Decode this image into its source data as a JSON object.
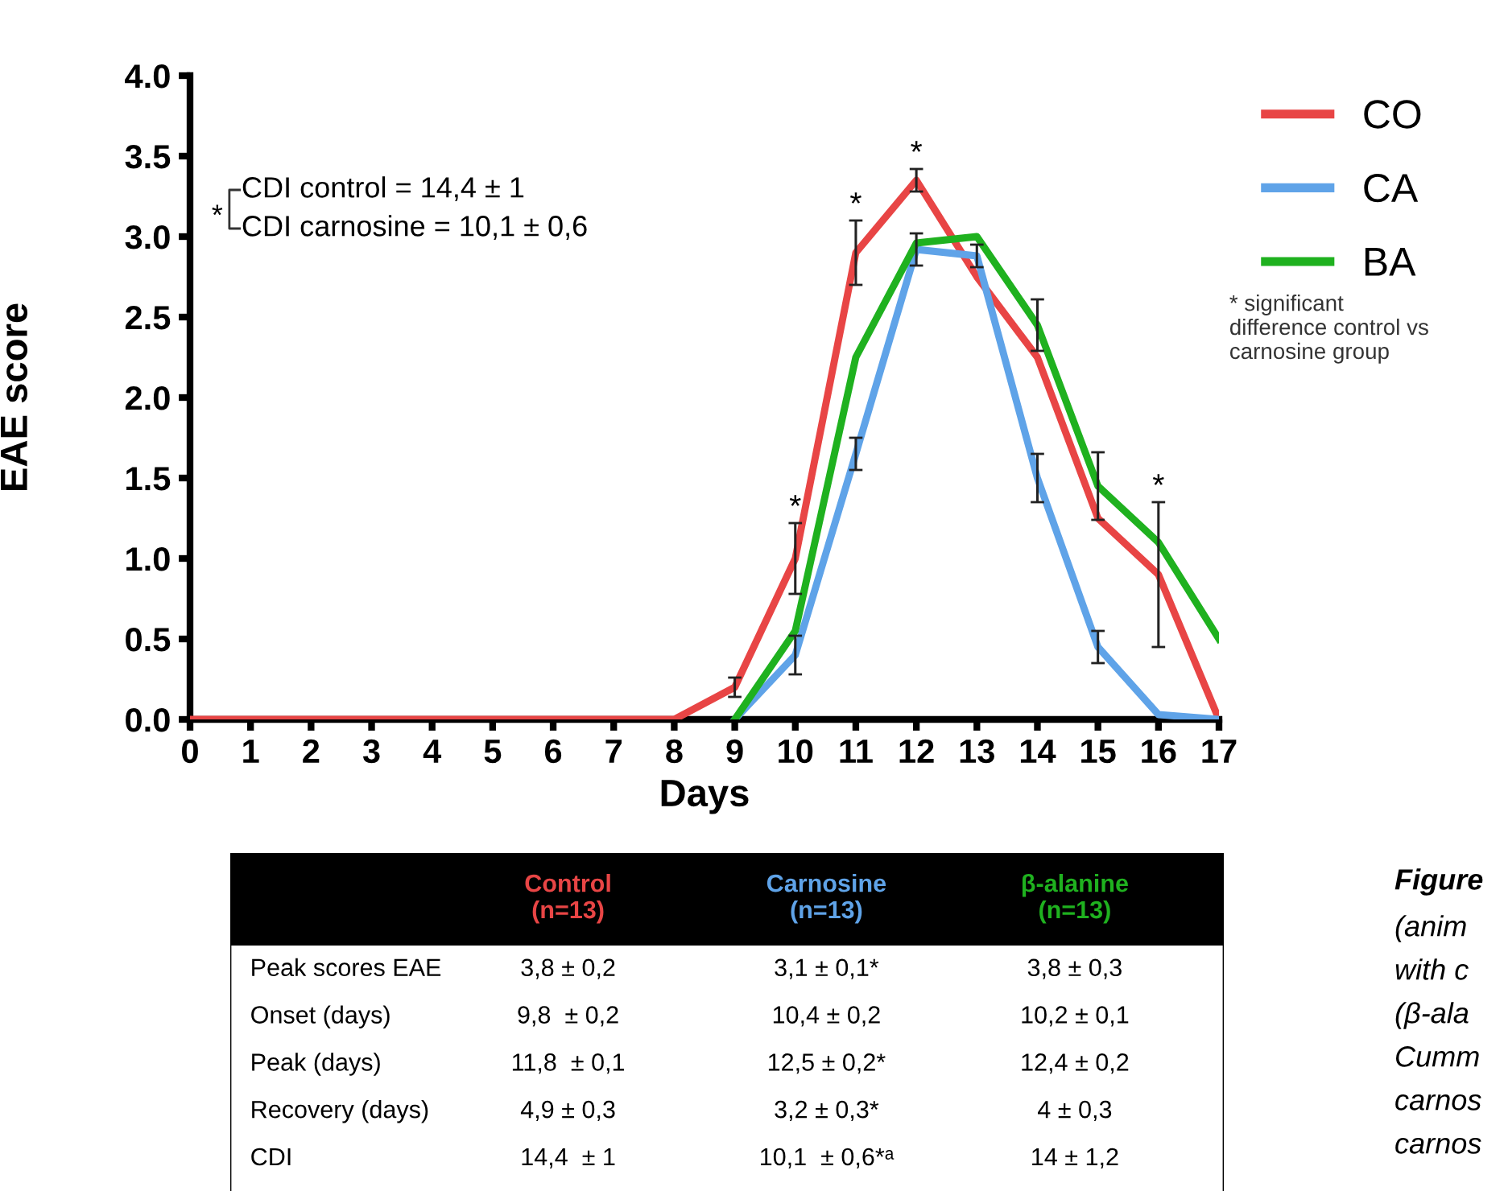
{
  "chart_data": [
    {
      "type": "line",
      "xlabel": "Days",
      "ylabel": "EAE score",
      "x": [
        0,
        1,
        2,
        3,
        4,
        5,
        6,
        7,
        8,
        9,
        10,
        11,
        12,
        13,
        14,
        15,
        16,
        17
      ],
      "series": [
        {
          "name": "CO",
          "color": "#e84545",
          "values": [
            0,
            0,
            0,
            0,
            0,
            0,
            0,
            0,
            0,
            0.2,
            1.0,
            2.9,
            3.35,
            2.75,
            2.25,
            1.25,
            0.9,
            0
          ],
          "errors": [
            null,
            null,
            null,
            null,
            null,
            null,
            null,
            null,
            null,
            0.06,
            0.22,
            0.2,
            0.07,
            null,
            null,
            null,
            0.45,
            null
          ]
        },
        {
          "name": "CA",
          "color": "#5fa3e8",
          "values": [
            null,
            null,
            null,
            null,
            null,
            null,
            null,
            null,
            null,
            0,
            0.4,
            1.65,
            2.92,
            2.88,
            1.5,
            0.45,
            0.03,
            0
          ],
          "errors": [
            null,
            null,
            null,
            null,
            null,
            null,
            null,
            null,
            null,
            null,
            0.12,
            0.1,
            0.1,
            0.07,
            0.15,
            0.1,
            null,
            null
          ]
        },
        {
          "name": "BA",
          "color": "#1fb11f",
          "values": [
            null,
            null,
            null,
            null,
            null,
            null,
            null,
            null,
            null,
            0,
            0.55,
            2.25,
            2.96,
            3.0,
            2.45,
            1.45,
            1.1,
            0.5
          ],
          "errors": [
            null,
            null,
            null,
            null,
            null,
            null,
            null,
            null,
            null,
            null,
            null,
            null,
            null,
            null,
            0.16,
            0.21,
            null,
            null
          ]
        }
      ],
      "xlim": [
        0,
        17
      ],
      "xticks": [
        0,
        1,
        2,
        3,
        4,
        5,
        6,
        7,
        8,
        9,
        10,
        11,
        12,
        13,
        14,
        15,
        16,
        17
      ],
      "ylim": [
        0,
        4
      ],
      "yticks": [
        {
          "value": 0,
          "label": "0.0"
        },
        {
          "value": 0.5,
          "label": "0.5"
        },
        {
          "value": 1,
          "label": "1.0"
        },
        {
          "value": 1.5,
          "label": "1.5"
        },
        {
          "value": 2,
          "label": "2.0"
        },
        {
          "value": 2.5,
          "label": "2.5"
        },
        {
          "value": 3,
          "label": "3.0"
        },
        {
          "value": 3.5,
          "label": "3.5"
        },
        {
          "value": 4,
          "label": "4.0"
        }
      ],
      "legend": "top right",
      "grid": false,
      "marker": "none",
      "line_style": "solid",
      "annotations": [
        {
          "text": "*",
          "x": 10,
          "y": 1.0
        },
        {
          "text": "*",
          "x": 11,
          "y": 2.9
        },
        {
          "text": "*",
          "x": 12,
          "y": 3.35
        },
        {
          "text": "*",
          "x": 16,
          "y": 0.9
        },
        "*",
        "CDI control = 14,4 ± 1",
        "CDI carnosine = 10,1 ± 0,6",
        "* significant\ndifference control vs\ncarnosine group"
      ]
    },
    {
      "type": "other",
      "categories": [
        null,
        "Control\n(n=13)",
        "Carnosine\n(n=13)",
        "β-alanine\n(n=13)"
      ],
      "annotations": [
        "Peak scores EAE",
        "3,8 ± 0,2",
        "3,1 ± 0,1*",
        "3,8 ± 0,3",
        "Onset (days)",
        "9,8  ± 0,2",
        "10,4 ± 0,2",
        "10,2 ± 0,1",
        "Peak (days)",
        "11,8  ± 0,1",
        "12,5 ± 0,2*",
        "12,4 ± 0,2",
        "Recovery (days)",
        "4,9 ± 0,3",
        "3,2 ± 0,3*",
        "4 ± 0,3",
        "CDI",
        "14,4  ± 1",
        "10,1  ± 0,6*ᵃ",
        "14 ± 1,2"
      ]
    },
    {
      "type": "other",
      "annotations": [
        "Figure",
        "(anim",
        "with c",
        "(β-ala",
        "Cumm",
        "carnos",
        "carnos"
      ]
    }
  ]
}
